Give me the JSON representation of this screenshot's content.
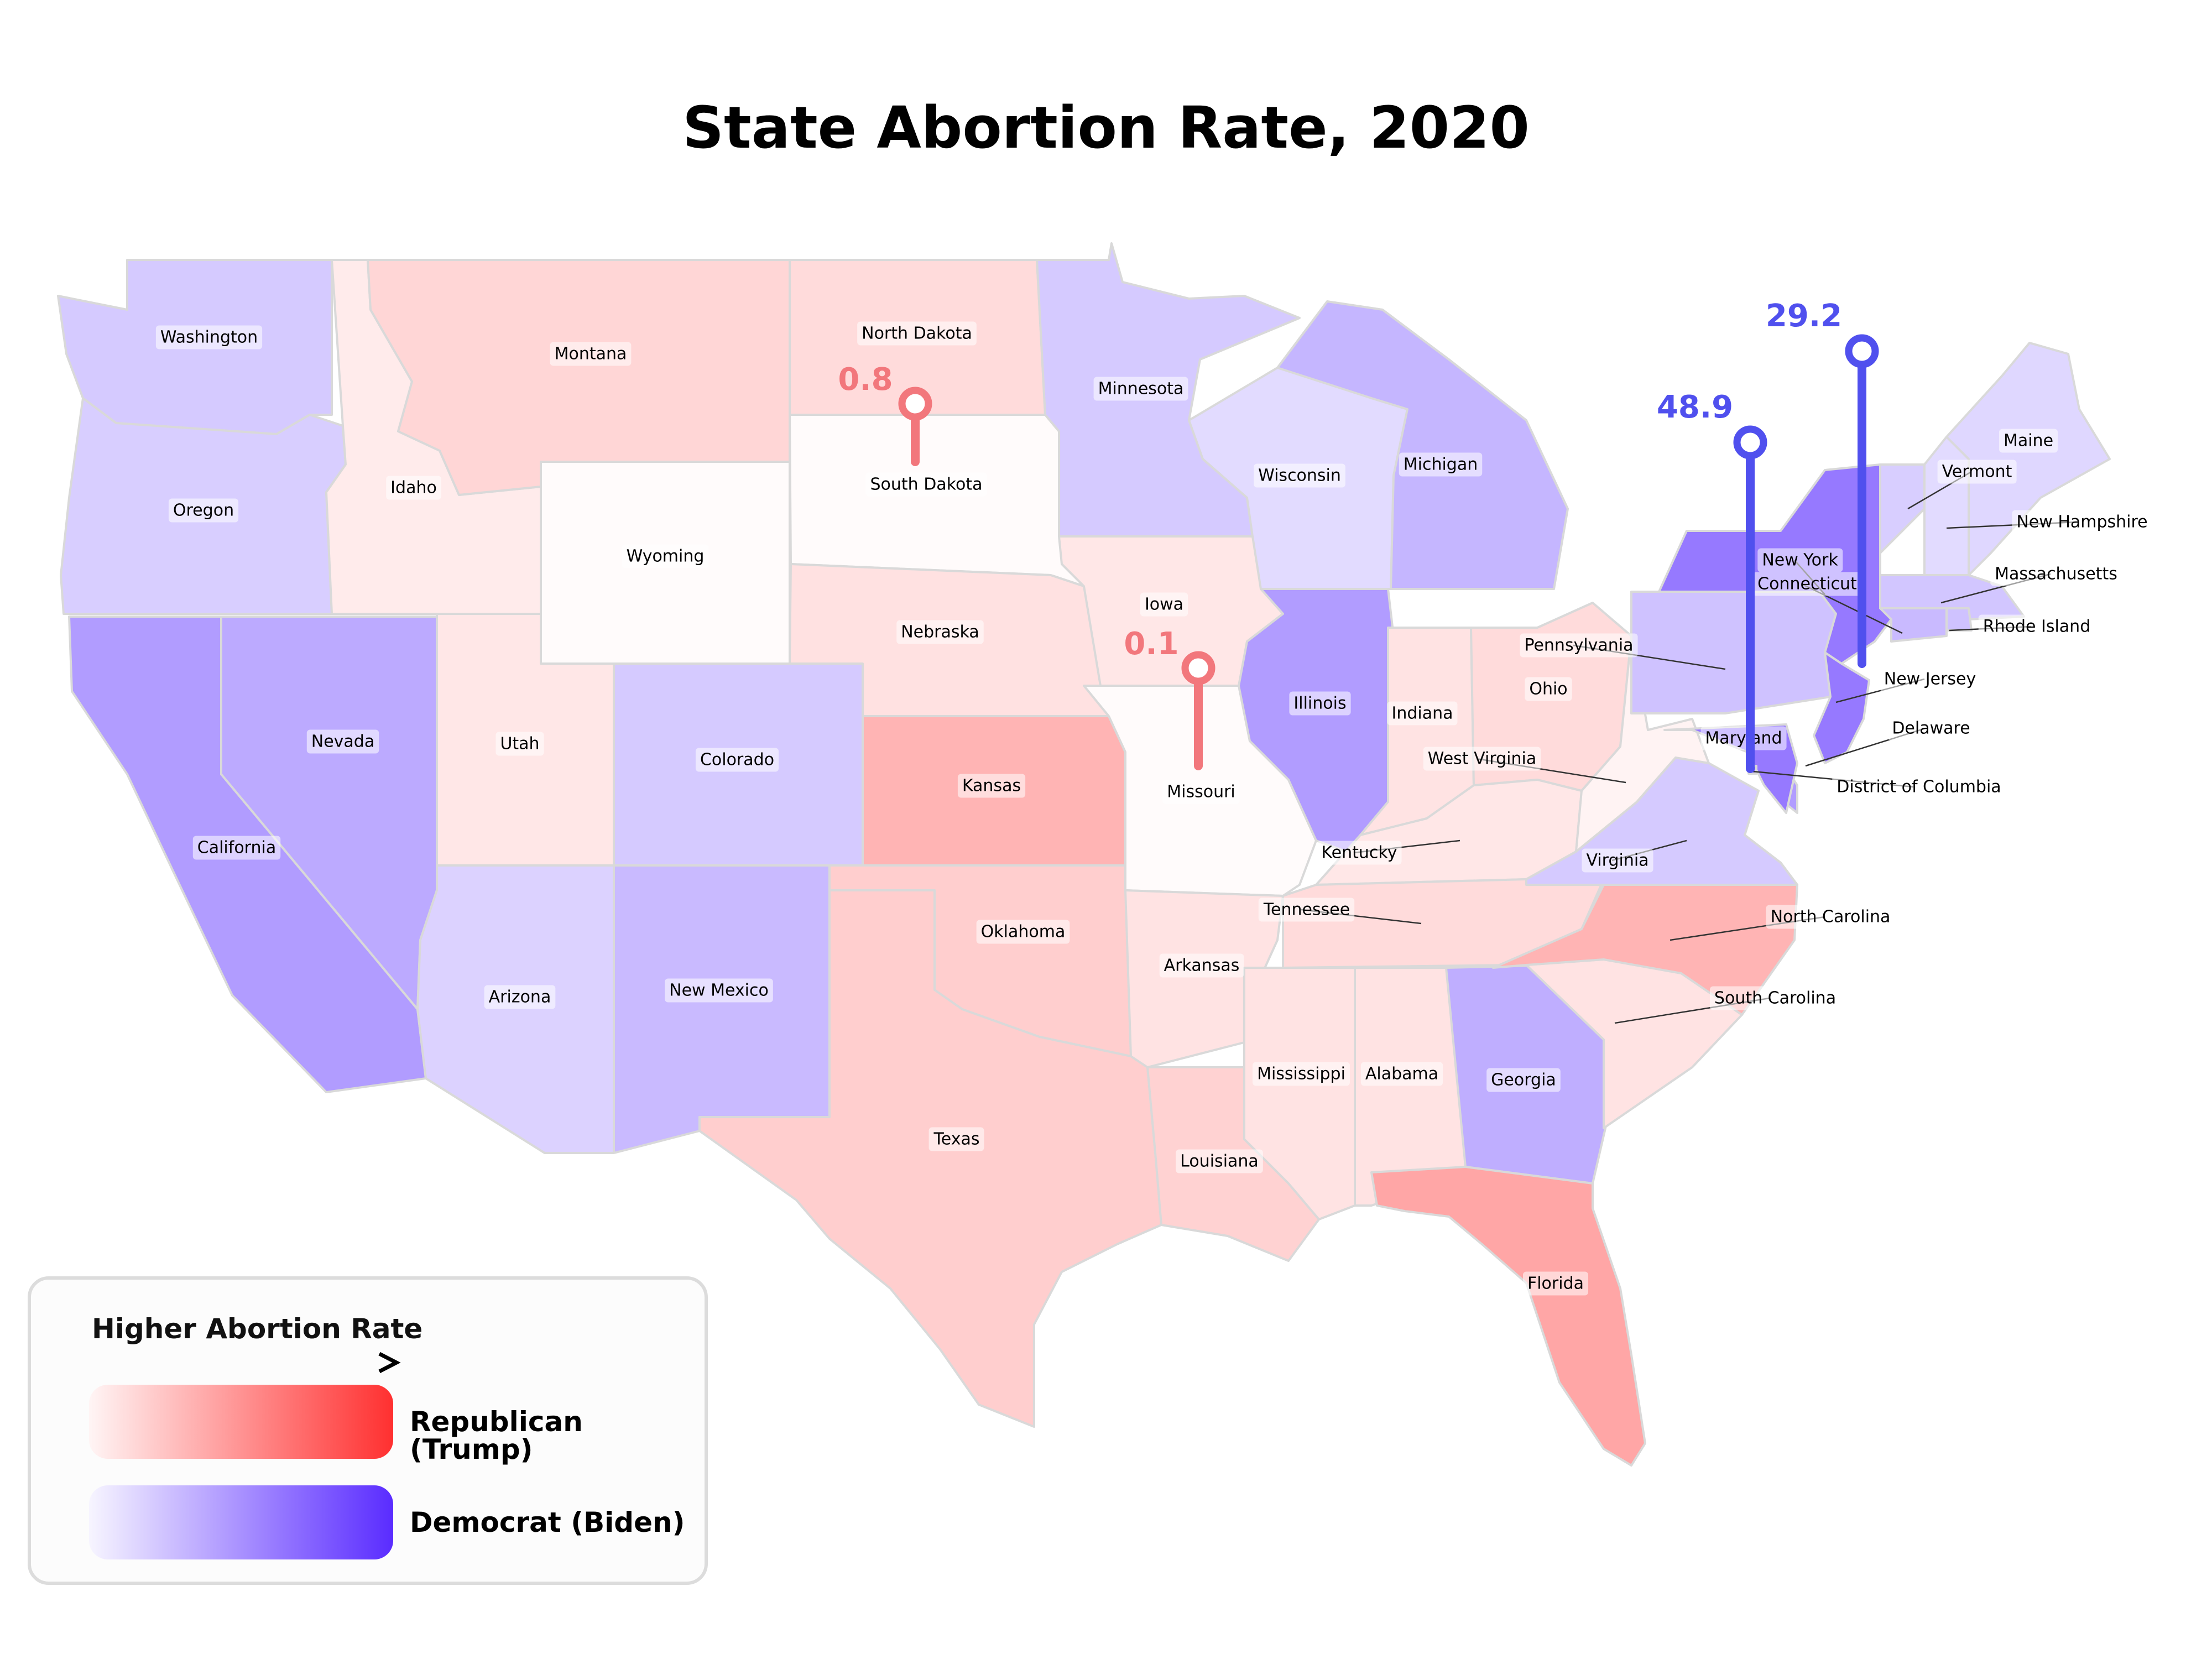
{
  "title": "State Abortion Rate, 2020",
  "colors": {
    "rep_dark": "#ff3030",
    "dem_dark": "#5a2cff",
    "pin_rep": "#f2777c",
    "pin_dem": "#5050ee"
  },
  "states": [
    {
      "name": "Washington",
      "party": "Democrat",
      "level": 0.22
    },
    {
      "name": "Oregon",
      "party": "Democrat",
      "level": 0.2
    },
    {
      "name": "California",
      "party": "Democrat",
      "level": 0.45
    },
    {
      "name": "Nevada",
      "party": "Democrat",
      "level": 0.38
    },
    {
      "name": "Idaho",
      "party": "Republican",
      "level": 0.08
    },
    {
      "name": "Montana",
      "party": "Republican",
      "level": 0.18
    },
    {
      "name": "Wyoming",
      "party": "Republican",
      "level": 0.0
    },
    {
      "name": "Utah",
      "party": "Republican",
      "level": 0.1
    },
    {
      "name": "Colorado",
      "party": "Democrat",
      "level": 0.22
    },
    {
      "name": "Arizona",
      "party": "Democrat",
      "level": 0.18
    },
    {
      "name": "New Mexico",
      "party": "Democrat",
      "level": 0.3
    },
    {
      "name": "North Dakota",
      "party": "Republican",
      "level": 0.16
    },
    {
      "name": "South Dakota",
      "party": "Republican",
      "level": 0.0
    },
    {
      "name": "Nebraska",
      "party": "Republican",
      "level": 0.13
    },
    {
      "name": "Kansas",
      "party": "Republican",
      "level": 0.35
    },
    {
      "name": "Oklahoma",
      "party": "Republican",
      "level": 0.22
    },
    {
      "name": "Texas",
      "party": "Republican",
      "level": 0.22
    },
    {
      "name": "Minnesota",
      "party": "Democrat",
      "level": 0.22
    },
    {
      "name": "Iowa",
      "party": "Republican",
      "level": 0.1
    },
    {
      "name": "Missouri",
      "party": "Republican",
      "level": 0.0
    },
    {
      "name": "Arkansas",
      "party": "Republican",
      "level": 0.12
    },
    {
      "name": "Louisiana",
      "party": "Republican",
      "level": 0.2
    },
    {
      "name": "Wisconsin",
      "party": "Democrat",
      "level": 0.14
    },
    {
      "name": "Illinois",
      "party": "Democrat",
      "level": 0.45
    },
    {
      "name": "Michigan",
      "party": "Democrat",
      "level": 0.32
    },
    {
      "name": "Indiana",
      "party": "Republican",
      "level": 0.12
    },
    {
      "name": "Ohio",
      "party": "Republican",
      "level": 0.16
    },
    {
      "name": "Kentucky",
      "party": "Republican",
      "level": 0.1
    },
    {
      "name": "Tennessee",
      "party": "Republican",
      "level": 0.16
    },
    {
      "name": "Mississippi",
      "party": "Republican",
      "level": 0.12
    },
    {
      "name": "Alabama",
      "party": "Republican",
      "level": 0.12
    },
    {
      "name": "Georgia",
      "party": "Democrat",
      "level": 0.36
    },
    {
      "name": "Florida",
      "party": "Republican",
      "level": 0.42
    },
    {
      "name": "South Carolina",
      "party": "Republican",
      "level": 0.12
    },
    {
      "name": "North Carolina",
      "party": "Republican",
      "level": 0.35
    },
    {
      "name": "Virginia",
      "party": "Democrat",
      "level": 0.22
    },
    {
      "name": "West Virginia",
      "party": "Republican",
      "level": 0.04
    },
    {
      "name": "Pennsylvania",
      "party": "Democrat",
      "level": 0.26
    },
    {
      "name": "New York",
      "party": "Democrat",
      "level": 0.62
    },
    {
      "name": "Vermont",
      "party": "Democrat",
      "level": 0.2
    },
    {
      "name": "New Hampshire",
      "party": "Democrat",
      "level": 0.14
    },
    {
      "name": "Maine",
      "party": "Democrat",
      "level": 0.16
    },
    {
      "name": "Massachusetts",
      "party": "Democrat",
      "level": 0.24
    },
    {
      "name": "Rhode Island",
      "party": "Democrat",
      "level": 0.26
    },
    {
      "name": "Connecticut",
      "party": "Democrat",
      "level": 0.3
    },
    {
      "name": "New Jersey",
      "party": "Democrat",
      "level": 0.62
    },
    {
      "name": "Delaware",
      "party": "Democrat",
      "level": 0.45
    },
    {
      "name": "Maryland",
      "party": "Democrat",
      "level": 0.62
    },
    {
      "name": "District of Columbia",
      "party": "Democrat",
      "level": 0.62
    }
  ],
  "pins": [
    {
      "state": "South Dakota",
      "value": "0.8",
      "party": "Republican"
    },
    {
      "state": "Missouri",
      "value": "0.1",
      "party": "Republican"
    },
    {
      "state": "Maryland",
      "value": "48.9",
      "party": "Democrat"
    },
    {
      "state": "New York",
      "value": "29.2",
      "party": "Democrat"
    }
  ],
  "legend": {
    "heading": "Higher Abortion Rate",
    "rep_label": "Republican (Trump)",
    "dem_label": "Democrat (Biden)"
  }
}
